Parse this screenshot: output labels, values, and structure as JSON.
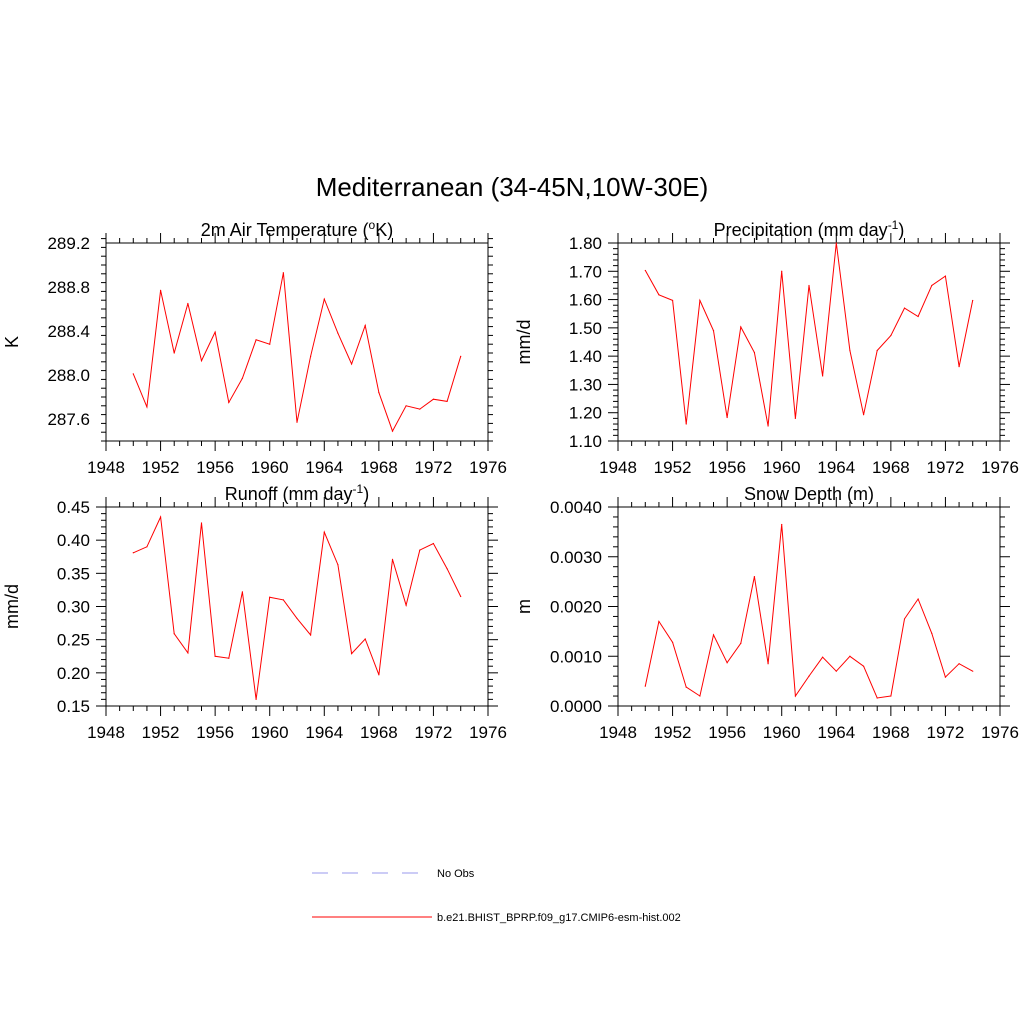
{
  "figure": {
    "title": "Mediterranean (34-45N,10W-30E)"
  },
  "legend": {
    "entries": [
      {
        "label": "No Obs",
        "color": "#9999ee",
        "style": "dashed"
      },
      {
        "label": "b.e21.BHIST_BPRP.f09_g17.CMIP6-esm-hist.002",
        "color": "#ff0000",
        "style": "solid"
      }
    ]
  },
  "chart_data": [
    {
      "type": "line",
      "title_main": "2m Air Temperature (",
      "title_sup": "o",
      "title_end": "K)",
      "ylabel": "K",
      "xlim": [
        1948,
        1976
      ],
      "ylim": [
        287.4,
        289.2
      ],
      "xticks": [
        1948,
        1952,
        1956,
        1960,
        1964,
        1968,
        1972,
        1976
      ],
      "yticks": [
        "287.6",
        "288.0",
        "288.4",
        "288.8",
        "289.2"
      ],
      "ytick_values": [
        287.6,
        288.0,
        288.4,
        288.8,
        289.2
      ],
      "grid": false,
      "series": [
        {
          "color": "#ff0000",
          "x": [
            1950,
            1951,
            1952,
            1953,
            1954,
            1955,
            1956,
            1957,
            1958,
            1959,
            1960,
            1961,
            1962,
            1963,
            1964,
            1965,
            1966,
            1967,
            1968,
            1969,
            1970,
            1971,
            1972,
            1973,
            1974
          ],
          "y": [
            288.01,
            287.71,
            288.77,
            288.2,
            288.65,
            288.13,
            288.39,
            287.75,
            287.97,
            288.32,
            288.28,
            288.93,
            287.57,
            288.17,
            288.69,
            288.38,
            288.1,
            288.45,
            287.84,
            287.49,
            287.72,
            287.69,
            287.78,
            287.76,
            288.17
          ]
        }
      ]
    },
    {
      "type": "line",
      "title_main": "Precipitation (mm day",
      "title_sup": "-1",
      "title_end": ")",
      "ylabel": "mm/d",
      "xlim": [
        1948,
        1976
      ],
      "ylim": [
        1.1,
        1.8
      ],
      "xticks": [
        1948,
        1952,
        1956,
        1960,
        1964,
        1968,
        1972,
        1976
      ],
      "yticks": [
        "1.10",
        "1.20",
        "1.30",
        "1.40",
        "1.50",
        "1.60",
        "1.70",
        "1.80"
      ],
      "ytick_values": [
        1.1,
        1.2,
        1.3,
        1.4,
        1.5,
        1.6,
        1.7,
        1.8
      ],
      "grid": false,
      "series": [
        {
          "color": "#ff0000",
          "x": [
            1950,
            1951,
            1952,
            1953,
            1954,
            1955,
            1956,
            1957,
            1958,
            1959,
            1960,
            1961,
            1962,
            1963,
            1964,
            1965,
            1966,
            1967,
            1968,
            1969,
            1970,
            1971,
            1972,
            1973,
            1974
          ],
          "y": [
            1.703,
            1.617,
            1.597,
            1.16,
            1.597,
            1.49,
            1.183,
            1.503,
            1.413,
            1.153,
            1.7,
            1.18,
            1.65,
            1.33,
            1.8,
            1.42,
            1.193,
            1.42,
            1.473,
            1.57,
            1.54,
            1.65,
            1.683,
            1.363,
            1.597
          ]
        }
      ]
    },
    {
      "type": "line",
      "title_main": "Runoff (mm day",
      "title_sup": "-1",
      "title_end": ")",
      "ylabel": "mm/d",
      "xlim": [
        1948,
        1976
      ],
      "ylim": [
        0.15,
        0.45
      ],
      "xticks": [
        1948,
        1952,
        1956,
        1960,
        1964,
        1968,
        1972,
        1976
      ],
      "yticks": [
        "0.15",
        "0.20",
        "0.25",
        "0.30",
        "0.35",
        "0.40",
        "0.45"
      ],
      "ytick_values": [
        0.15,
        0.2,
        0.25,
        0.3,
        0.35,
        0.4,
        0.45
      ],
      "grid": false,
      "series": [
        {
          "color": "#ff0000",
          "x": [
            1950,
            1951,
            1952,
            1953,
            1954,
            1955,
            1956,
            1957,
            1958,
            1959,
            1960,
            1961,
            1962,
            1963,
            1964,
            1965,
            1966,
            1967,
            1968,
            1969,
            1970,
            1971,
            1972,
            1973,
            1974
          ],
          "y": [
            0.381,
            0.39,
            0.435,
            0.259,
            0.23,
            0.426,
            0.225,
            0.222,
            0.322,
            0.16,
            0.314,
            0.31,
            0.282,
            0.257,
            0.412,
            0.363,
            0.229,
            0.251,
            0.197,
            0.371,
            0.302,
            0.385,
            0.395,
            0.357,
            0.315
          ]
        }
      ]
    },
    {
      "type": "line",
      "title_main": "Snow Depth (m)",
      "title_sup": "",
      "title_end": "",
      "ylabel": "m",
      "xlim": [
        1948,
        1976
      ],
      "ylim": [
        0.0,
        0.004
      ],
      "xticks": [
        1948,
        1952,
        1956,
        1960,
        1964,
        1968,
        1972,
        1976
      ],
      "yticks": [
        "0.0000",
        "0.0010",
        "0.0020",
        "0.0030",
        "0.0040"
      ],
      "ytick_values": [
        0.0,
        0.001,
        0.002,
        0.003,
        0.004
      ],
      "grid": false,
      "series": [
        {
          "color": "#ff0000",
          "x": [
            1950,
            1951,
            1952,
            1953,
            1954,
            1955,
            1956,
            1957,
            1958,
            1959,
            1960,
            1961,
            1962,
            1963,
            1964,
            1965,
            1966,
            1967,
            1968,
            1969,
            1970,
            1971,
            1972,
            1973,
            1974
          ],
          "y": [
            0.0004,
            0.0017,
            0.00128,
            0.00038,
            0.0002,
            0.00143,
            0.00087,
            0.00126,
            0.0026,
            0.00085,
            0.00365,
            0.0002,
            0.0006,
            0.00098,
            0.0007,
            0.001,
            0.0008,
            0.00016,
            0.0002,
            0.00175,
            0.00215,
            0.00146,
            0.00058,
            0.00085,
            0.0007
          ]
        }
      ]
    }
  ]
}
